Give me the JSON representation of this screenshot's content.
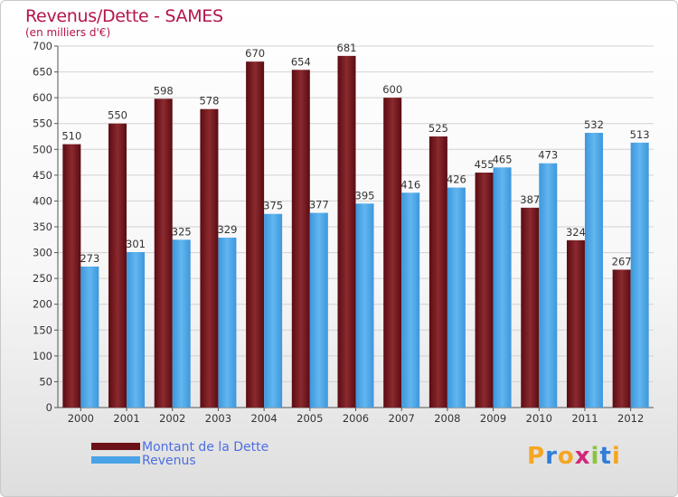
{
  "title": "Revenus/Dette - SAMES",
  "subtitle": "(en milliers d'€)",
  "logo": {
    "text": "Proxiti",
    "colors": [
      "#f5a623",
      "#2f7ed8",
      "#f5a623",
      "#d0287a",
      "#8ac43f",
      "#2f7ed8",
      "#f5a623"
    ]
  },
  "colors": {
    "debt": "#6b1218",
    "revenue": "#4aa3e6",
    "title": "#b5144a",
    "legend_text": "#4d6fe0"
  },
  "chart_data": {
    "type": "bar",
    "categories": [
      "2000",
      "2001",
      "2002",
      "2003",
      "2004",
      "2005",
      "2006",
      "2007",
      "2008",
      "2009",
      "2010",
      "2011",
      "2012"
    ],
    "series": [
      {
        "name": "Montant de la Dette",
        "values": [
          510,
          550,
          598,
          578,
          670,
          654,
          681,
          600,
          525,
          455,
          387,
          324,
          267
        ]
      },
      {
        "name": "Revenus",
        "values": [
          273,
          301,
          325,
          329,
          375,
          377,
          395,
          416,
          426,
          465,
          473,
          532,
          513
        ]
      }
    ],
    "yticks": [
      0,
      50,
      100,
      150,
      200,
      250,
      300,
      350,
      400,
      450,
      500,
      550,
      600,
      650,
      700
    ],
    "ylim": [
      0,
      700
    ],
    "grid": true,
    "legend_position": "bottom-left"
  }
}
